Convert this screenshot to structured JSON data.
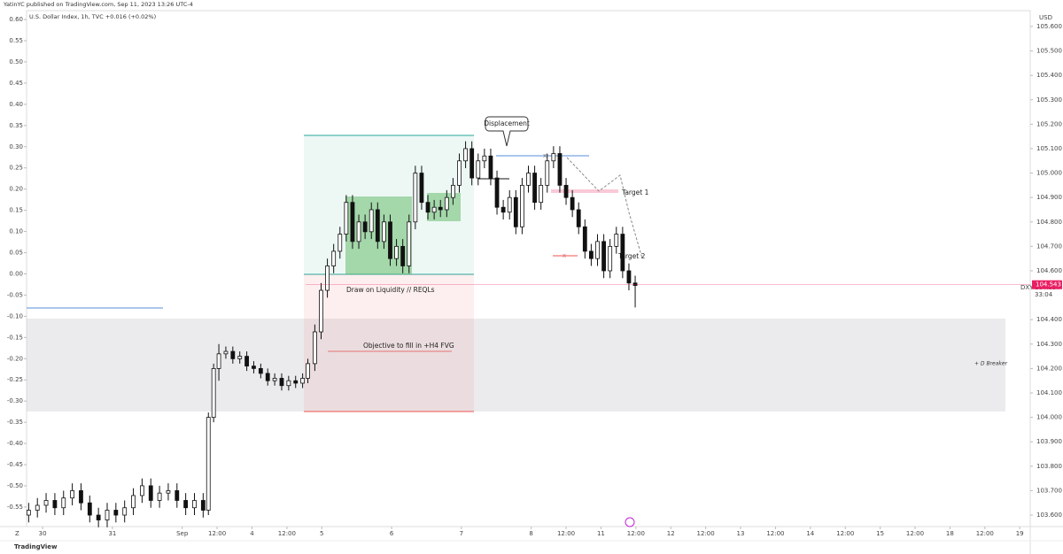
{
  "publisher_line": "YatinYC published on TradingView.com, Sep 11, 2023 13:26 UTC-4",
  "footer": {
    "logo": "TradingView",
    "zoom": "Z"
  },
  "chart_data": {
    "type": "candlestick",
    "title": "U.S. Dollar Index, 1h, TVC  +0.016 (+0.02%)",
    "symbol": "DXY",
    "up_color": "#ffffff",
    "down_color": "#111111",
    "outline_color": "#111111",
    "last_price": 104.543,
    "last_price_color": "#e91e63",
    "price_info": [
      "104.537",
      "33:04"
    ],
    "annotations": {
      "displacement": "Displacement",
      "target1": "Target 1",
      "target2": "Target 2",
      "liquidity": "Draw on Liquidity // REQLs",
      "objective": "Objective to fill in +H4 FVG",
      "breaker": "+ D Breaker",
      "x1": "x",
      "x2": "x"
    },
    "xlim": [
      -0.46,
      28.3
    ],
    "xticks": [
      {
        "value": 0,
        "label": "30"
      },
      {
        "value": 2,
        "label": "31"
      },
      {
        "value": 4,
        "label": "Sep"
      },
      {
        "value": 5,
        "label": "12:00"
      },
      {
        "value": 6,
        "label": "4"
      },
      {
        "value": 7,
        "label": "12:00"
      },
      {
        "value": 8,
        "label": "5"
      },
      {
        "value": 10,
        "label": "6"
      },
      {
        "value": 12,
        "label": "7"
      },
      {
        "value": 14,
        "label": "8"
      },
      {
        "value": 15,
        "label": "12:00"
      },
      {
        "value": 16,
        "label": "11"
      },
      {
        "value": 17,
        "label": "12:00"
      },
      {
        "value": 18,
        "label": "12"
      },
      {
        "value": 19,
        "label": "12:00"
      },
      {
        "value": 20,
        "label": "13"
      },
      {
        "value": 21,
        "label": "12:00"
      },
      {
        "value": 22,
        "label": "14"
      },
      {
        "value": 23,
        "label": "12:00"
      },
      {
        "value": 24,
        "label": "15"
      },
      {
        "value": 25,
        "label": "12:00"
      },
      {
        "value": 26,
        "label": "18"
      },
      {
        "value": 27,
        "label": "12:00"
      },
      {
        "value": 28,
        "label": "19"
      }
    ],
    "ylim": [
      103.553,
      105.665
    ],
    "yticks": [
      {
        "value": 105.6,
        "label": "105.600"
      },
      {
        "value": 105.5,
        "label": "105.500"
      },
      {
        "value": 105.4,
        "label": "105.400"
      },
      {
        "value": 105.3,
        "label": "105.300"
      },
      {
        "value": 105.2,
        "label": "105.200"
      },
      {
        "value": 105.1,
        "label": "105.100"
      },
      {
        "value": 105.0,
        "label": "105.000"
      },
      {
        "value": 104.9,
        "label": "104.900"
      },
      {
        "value": 104.8,
        "label": "104.800"
      },
      {
        "value": 104.7,
        "label": "104.700"
      },
      {
        "value": 104.6,
        "label": "104.600"
      },
      {
        "value": 104.4,
        "label": "104.400"
      },
      {
        "value": 104.3,
        "label": "104.300"
      },
      {
        "value": 104.2,
        "label": "104.200"
      },
      {
        "value": 104.1,
        "label": "104.100"
      },
      {
        "value": 104.0,
        "label": "104.000"
      },
      {
        "value": 103.9,
        "label": "103.900"
      },
      {
        "value": 103.8,
        "label": "103.800"
      },
      {
        "value": 103.7,
        "label": "103.700"
      },
      {
        "value": 103.6,
        "label": "103.600"
      }
    ],
    "y2lim": [
      -0.596,
      0.621
    ],
    "y2ticks": [
      {
        "value": 0.6,
        "label": "0.60"
      },
      {
        "value": 0.55,
        "label": "0.55"
      },
      {
        "value": 0.5,
        "label": "0.50"
      },
      {
        "value": 0.45,
        "label": "0.45"
      },
      {
        "value": 0.4,
        "label": "0.40"
      },
      {
        "value": 0.35,
        "label": "0.35"
      },
      {
        "value": 0.3,
        "label": "0.30"
      },
      {
        "value": 0.25,
        "label": "0.25"
      },
      {
        "value": 0.2,
        "label": "0.20"
      },
      {
        "value": 0.15,
        "label": "0.15"
      },
      {
        "value": 0.1,
        "label": "0.10"
      },
      {
        "value": 0.05,
        "label": "0.05"
      },
      {
        "value": 0,
        "label": "0.00"
      },
      {
        "value": -0.05,
        "label": "-0.05"
      },
      {
        "value": -0.1,
        "label": "-0.10"
      },
      {
        "value": -0.15,
        "label": "-0.15"
      },
      {
        "value": -0.2,
        "label": "-0.20"
      },
      {
        "value": -0.25,
        "label": "-0.25"
      },
      {
        "value": -0.3,
        "label": "-0.30"
      },
      {
        "value": -0.35,
        "label": "-0.35"
      },
      {
        "value": -0.4,
        "label": "-0.40"
      },
      {
        "value": -0.45,
        "label": "-0.45"
      },
      {
        "value": -0.5,
        "label": "-0.50"
      },
      {
        "value": -0.55,
        "label": "-0.55"
      }
    ],
    "x": [
      -0.4,
      -0.15,
      0.1,
      0.35,
      0.6,
      0.85,
      1.1,
      1.35,
      1.6,
      1.85,
      2.1,
      2.35,
      2.6,
      2.85,
      3.1,
      3.35,
      3.6,
      3.85,
      4.1,
      4.35,
      4.6,
      4.75,
      4.9,
      5.05,
      5.25,
      5.45,
      5.65,
      5.85,
      6.05,
      6.25,
      6.45,
      6.65,
      6.85,
      7.05,
      7.25,
      7.45,
      7.6,
      7.8,
      7.98,
      8.16,
      8.34,
      8.52,
      8.7,
      8.88,
      9.06,
      9.24,
      9.42,
      9.6,
      9.78,
      9.96,
      10.14,
      10.32,
      10.5,
      10.68,
      10.86,
      11.04,
      11.22,
      11.4,
      11.58,
      11.76,
      11.94,
      12.12,
      12.3,
      12.48,
      12.66,
      12.84,
      13.02,
      13.2,
      13.38,
      13.56,
      13.74,
      13.92,
      14.1,
      14.28,
      14.46,
      14.64,
      14.82,
      15.0,
      15.18,
      15.36,
      15.54,
      15.72,
      15.9,
      16.08,
      16.26,
      16.44,
      16.62,
      16.8,
      16.98
    ],
    "open": [
      103.6,
      103.62,
      103.64,
      103.66,
      103.63,
      103.67,
      103.7,
      103.65,
      103.6,
      103.58,
      103.62,
      103.6,
      103.63,
      103.68,
      103.72,
      103.66,
      103.69,
      103.7,
      103.66,
      103.63,
      103.66,
      103.62,
      104.0,
      104.2,
      104.26,
      104.27,
      104.24,
      104.25,
      104.21,
      104.2,
      104.18,
      104.15,
      104.16,
      104.13,
      104.15,
      104.14,
      104.16,
      104.22,
      104.35,
      104.52,
      104.62,
      104.68,
      104.75,
      104.88,
      104.72,
      104.8,
      104.76,
      104.85,
      104.72,
      104.8,
      104.65,
      104.7,
      104.62,
      104.8,
      105.0,
      104.88,
      104.84,
      104.86,
      104.85,
      104.9,
      104.95,
      105.05,
      105.1,
      104.98,
      105.05,
      105.07,
      104.98,
      104.86,
      104.84,
      104.9,
      104.78,
      104.95,
      105.0,
      104.88,
      104.95,
      105.05,
      105.08,
      104.95,
      104.9,
      104.85,
      104.78,
      104.68,
      104.65,
      104.72,
      104.6,
      104.7,
      104.75,
      104.6,
      104.55
    ],
    "high": [
      103.65,
      103.67,
      103.69,
      103.69,
      103.7,
      103.73,
      103.73,
      103.68,
      103.63,
      103.65,
      103.65,
      103.66,
      103.71,
      103.75,
      103.75,
      103.72,
      103.73,
      103.73,
      103.69,
      103.69,
      103.69,
      104.02,
      104.22,
      104.3,
      104.29,
      104.29,
      104.27,
      104.27,
      104.23,
      104.22,
      104.2,
      104.18,
      104.18,
      104.17,
      104.17,
      104.18,
      104.24,
      104.38,
      104.55,
      104.65,
      104.71,
      104.78,
      104.91,
      104.91,
      104.83,
      104.83,
      104.88,
      104.88,
      104.83,
      104.83,
      104.73,
      104.73,
      104.83,
      105.03,
      105.03,
      104.91,
      104.89,
      104.89,
      104.93,
      104.98,
      105.08,
      105.13,
      105.13,
      105.08,
      105.1,
      105.1,
      105.01,
      104.89,
      104.93,
      104.93,
      104.98,
      105.03,
      105.03,
      104.98,
      105.08,
      105.11,
      105.11,
      104.98,
      104.93,
      104.88,
      104.81,
      104.71,
      104.75,
      104.75,
      104.73,
      104.78,
      104.78,
      104.63,
      104.58
    ],
    "low": [
      103.57,
      103.59,
      103.61,
      103.6,
      103.6,
      103.64,
      103.62,
      103.57,
      103.55,
      103.55,
      103.57,
      103.57,
      103.6,
      103.65,
      103.63,
      103.63,
      103.66,
      103.63,
      103.6,
      103.6,
      103.59,
      103.6,
      103.98,
      104.15,
      104.24,
      104.22,
      104.22,
      104.19,
      104.18,
      104.16,
      104.13,
      104.13,
      104.11,
      104.11,
      104.12,
      104.12,
      104.14,
      104.19,
      104.32,
      104.49,
      104.59,
      104.65,
      104.72,
      104.69,
      104.69,
      104.73,
      104.73,
      104.69,
      104.69,
      104.62,
      104.62,
      104.59,
      104.59,
      104.77,
      104.85,
      104.81,
      104.81,
      104.82,
      104.82,
      104.87,
      104.92,
      105.02,
      104.95,
      104.95,
      105.02,
      104.95,
      104.83,
      104.81,
      104.81,
      104.75,
      104.75,
      104.92,
      104.85,
      104.85,
      104.92,
      105.02,
      104.92,
      104.87,
      104.82,
      104.75,
      104.65,
      104.62,
      104.62,
      104.57,
      104.57,
      104.67,
      104.57,
      104.52,
      104.45
    ],
    "close": [
      103.62,
      103.64,
      103.66,
      103.63,
      103.67,
      103.7,
      103.65,
      103.6,
      103.58,
      103.62,
      103.6,
      103.63,
      103.68,
      103.72,
      103.66,
      103.69,
      103.7,
      103.66,
      103.63,
      103.66,
      103.62,
      104.0,
      104.2,
      104.26,
      104.27,
      104.24,
      104.25,
      104.21,
      104.2,
      104.18,
      104.15,
      104.16,
      104.13,
      104.15,
      104.14,
      104.16,
      104.22,
      104.35,
      104.52,
      104.62,
      104.68,
      104.75,
      104.88,
      104.72,
      104.8,
      104.76,
      104.85,
      104.72,
      104.8,
      104.65,
      104.7,
      104.62,
      104.8,
      105.0,
      104.88,
      104.84,
      104.86,
      104.85,
      104.9,
      104.95,
      105.05,
      105.1,
      104.98,
      105.05,
      105.07,
      104.98,
      104.86,
      104.84,
      104.9,
      104.78,
      104.95,
      105.0,
      104.88,
      104.95,
      105.05,
      105.08,
      104.95,
      104.9,
      104.85,
      104.78,
      104.68,
      104.65,
      104.72,
      104.6,
      104.7,
      104.75,
      104.6,
      104.55,
      104.54
    ]
  }
}
